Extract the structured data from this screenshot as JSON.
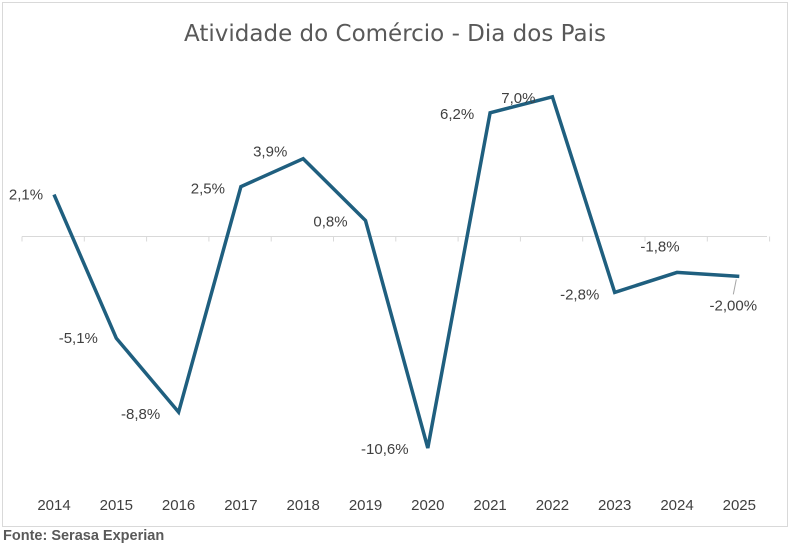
{
  "chart_data": {
    "type": "line",
    "title": "Atividade do Comércio - Dia dos Pais",
    "xlabel": "",
    "ylabel": "",
    "categories": [
      "2014",
      "2015",
      "2016",
      "2017",
      "2018",
      "2019",
      "2020",
      "2021",
      "2022",
      "2023",
      "2024",
      "2025"
    ],
    "series": [
      {
        "name": "Atividade do Comércio",
        "values": [
          2.1,
          -5.1,
          -8.8,
          2.5,
          3.9,
          0.8,
          -10.6,
          6.2,
          7.0,
          -2.8,
          -1.8,
          -2.0
        ],
        "labels": [
          "2,1%",
          "-5,1%",
          "-8,8%",
          "2,5%",
          "3,9%",
          "0,8%",
          "-10,6%",
          "6,2%",
          "7,0%",
          "-2,8%",
          "-1,8%",
          "-2,00%"
        ]
      }
    ],
    "ylim": [
      -12,
      9
    ],
    "grid": false,
    "legend": "none",
    "line_color": "#1f5f7f",
    "axis_color": "#d9d9d9"
  },
  "source": "Fonte: Serasa Experian"
}
